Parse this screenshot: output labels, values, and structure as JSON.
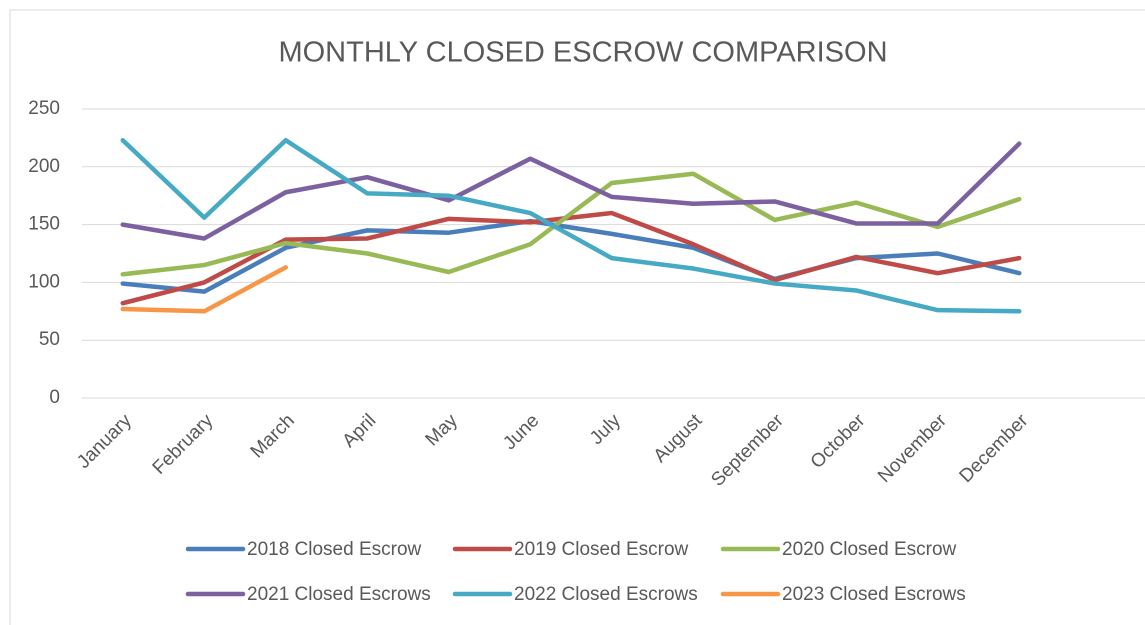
{
  "chart_data": {
    "type": "line",
    "title": "MONTHLY CLOSED ESCROW COMPARISON",
    "categories": [
      "January",
      "February",
      "March",
      "April",
      "May",
      "June",
      "July",
      "August",
      "September",
      "October",
      "November",
      "December"
    ],
    "series": [
      {
        "name": "2018 Closed Escrow",
        "color": "#4a7ebb",
        "values": [
          99,
          92,
          130,
          145,
          143,
          153,
          142,
          130,
          103,
          121,
          125,
          108
        ]
      },
      {
        "name": "2019 Closed Escrow",
        "color": "#be4b48",
        "values": [
          82,
          100,
          137,
          138,
          155,
          152,
          160,
          133,
          102,
          122,
          108,
          121
        ]
      },
      {
        "name": "2020 Closed Escrow",
        "color": "#98b954",
        "values": [
          107,
          115,
          134,
          125,
          109,
          133,
          186,
          194,
          154,
          169,
          148,
          172
        ]
      },
      {
        "name": "2021 Closed Escrows",
        "color": "#7d60a0",
        "values": [
          150,
          138,
          178,
          191,
          171,
          207,
          174,
          168,
          170,
          151,
          151,
          220
        ]
      },
      {
        "name": "2022 Closed Escrows",
        "color": "#46aac5",
        "values": [
          223,
          156,
          223,
          177,
          175,
          160,
          121,
          112,
          99,
          93,
          76,
          75
        ]
      },
      {
        "name": "2023 Closed Escrows",
        "color": "#f79646",
        "values": [
          77,
          75,
          113,
          null,
          null,
          null,
          null,
          null,
          null,
          null,
          null,
          null
        ]
      }
    ],
    "ylim": [
      0,
      250
    ],
    "yticks": [
      0,
      50,
      100,
      150,
      200,
      250
    ],
    "grid": true,
    "legend": "bottom"
  }
}
